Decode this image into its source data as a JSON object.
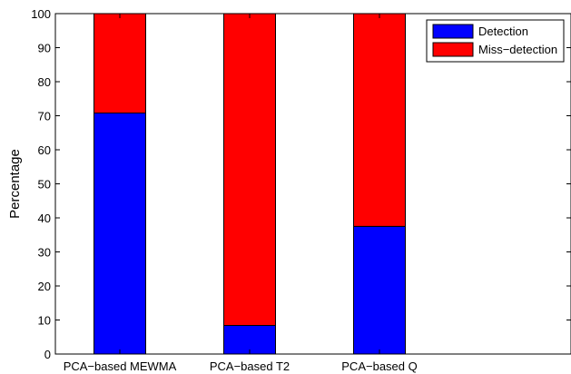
{
  "chart_data": {
    "type": "bar",
    "stacked": true,
    "categories": [
      "PCA−based MEWMA",
      "PCA−based T2",
      "PCA−based Q"
    ],
    "series": [
      {
        "name": "Detection",
        "color": "#0000ff",
        "values": [
          70.8,
          8.4,
          37.5
        ]
      },
      {
        "name": "Miss−detection",
        "color": "#ff0000",
        "values": [
          29.2,
          91.6,
          62.5
        ]
      }
    ],
    "xlabel": "",
    "ylabel": "Percentage",
    "ylim": [
      0,
      100
    ],
    "yticks": [
      0,
      10,
      20,
      30,
      40,
      50,
      60,
      70,
      80,
      90,
      100
    ],
    "legend": "top-right",
    "grid": false
  }
}
